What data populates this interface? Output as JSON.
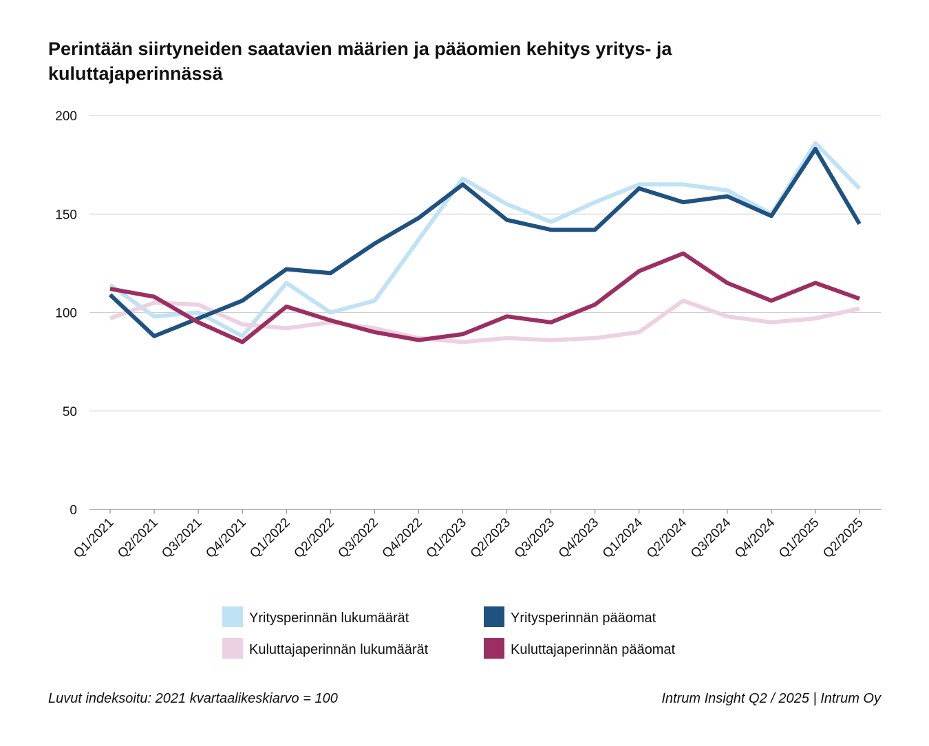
{
  "chart_data": {
    "type": "line",
    "title_lines": [
      "Perintään siirtyneiden saatavien määrien ja pääomien kehitys yritys- ja",
      "kuluttajaperinnässä"
    ],
    "xlabel": "",
    "ylabel": "",
    "ylim": [
      0,
      200
    ],
    "yticks": [
      0,
      50,
      100,
      150,
      200
    ],
    "grid": true,
    "legend_position": "bottom",
    "categories": [
      "Q1/2021",
      "Q2/2021",
      "Q3/2021",
      "Q4/2021",
      "Q1/2022",
      "Q2/2022",
      "Q3/2022",
      "Q4/2022",
      "Q1/2023",
      "Q2/2023",
      "Q3/2023",
      "Q4/2023",
      "Q1/2024",
      "Q2/2024",
      "Q3/2024",
      "Q4/2024",
      "Q1/2025",
      "Q2/2025"
    ],
    "series": [
      {
        "name": "Yritysperinnän lukumäärät",
        "color": "#bfe2f5",
        "values": [
          114,
          98,
          100,
          88,
          115,
          100,
          106,
          137,
          168,
          155,
          146,
          156,
          165,
          165,
          162,
          150,
          186,
          163
        ]
      },
      {
        "name": "Kuluttajaperinnän lukumäärät",
        "color": "#edd1e3",
        "values": [
          97,
          105,
          104,
          94,
          92,
          95,
          92,
          87,
          85,
          87,
          86,
          87,
          90,
          106,
          98,
          95,
          97,
          102
        ]
      },
      {
        "name": "Yritysperinnän pääomat",
        "color": "#1f5280",
        "values": [
          109,
          88,
          97,
          106,
          122,
          120,
          135,
          148,
          165,
          147,
          142,
          142,
          163,
          156,
          159,
          149,
          183,
          145
        ]
      },
      {
        "name": "Kuluttajaperinnän pääomat",
        "color": "#9b2f62",
        "values": [
          112,
          108,
          95,
          85,
          103,
          96,
          90,
          86,
          89,
          98,
          95,
          104,
          121,
          130,
          115,
          106,
          115,
          107
        ]
      }
    ],
    "legend_order": [
      0,
      2,
      1,
      3
    ]
  },
  "footer": {
    "note": "Luvut indeksoitu: 2021 kvartaalikeskiarvo = 100",
    "source": "Intrum Insight Q2 / 2025 | Intrum Oy"
  }
}
